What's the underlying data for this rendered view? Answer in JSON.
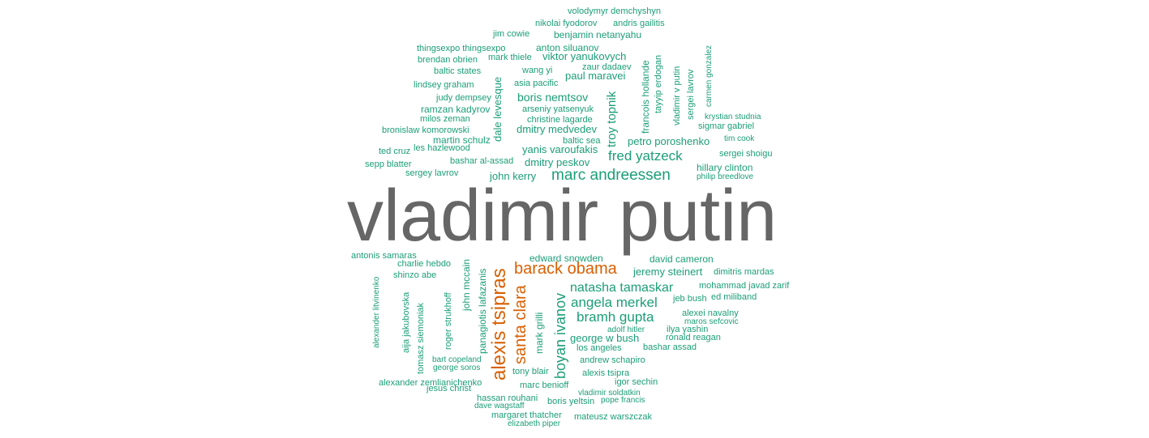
{
  "colors": {
    "largest": "#666666",
    "second": "#d95f02",
    "rest": "#1b9e77"
  },
  "words": [
    {
      "text": "vladimir putin",
      "tier": "largest"
    },
    {
      "text": "alexis tsipras",
      "tier": "second"
    },
    {
      "text": "barack obama",
      "tier": "second"
    },
    {
      "text": "santa clara",
      "tier": "second"
    },
    {
      "text": "marc andreessen",
      "tier": "rest"
    },
    {
      "text": "natasha tamaskar",
      "tier": "rest"
    },
    {
      "text": "angela merkel",
      "tier": "rest"
    },
    {
      "text": "bramh gupta",
      "tier": "rest"
    },
    {
      "text": "boyan ivanov",
      "tier": "rest"
    },
    {
      "text": "fred yatzeck",
      "tier": "rest"
    },
    {
      "text": "troy topnik",
      "tier": "rest"
    },
    {
      "text": "boris nemtsov",
      "tier": "rest"
    },
    {
      "text": "petro poroshenko",
      "tier": "rest"
    },
    {
      "text": "dmitry medvedev",
      "tier": "rest"
    },
    {
      "text": "dmitry peskov",
      "tier": "rest"
    },
    {
      "text": "yanis varoufakis",
      "tier": "rest"
    },
    {
      "text": "john kerry",
      "tier": "rest"
    },
    {
      "text": "hillary clinton",
      "tier": "rest"
    },
    {
      "text": "jeremy steinert",
      "tier": "rest"
    },
    {
      "text": "david cameron",
      "tier": "rest"
    },
    {
      "text": "george w bush",
      "tier": "rest"
    },
    {
      "text": "viktor yanukovych",
      "tier": "rest"
    },
    {
      "text": "benjamin netanyahu",
      "tier": "rest"
    },
    {
      "text": "paul maravei",
      "tier": "rest"
    },
    {
      "text": "francois hollande",
      "tier": "rest"
    },
    {
      "text": "dale levesque",
      "tier": "rest"
    },
    {
      "text": "mark grilli",
      "tier": "rest"
    },
    {
      "text": "edward snowden",
      "tier": "rest"
    },
    {
      "text": "volodymyr demchyshyn",
      "tier": "rest"
    },
    {
      "text": "nikolai fyodorov",
      "tier": "rest"
    },
    {
      "text": "andris gailitis",
      "tier": "rest"
    },
    {
      "text": "jim cowie",
      "tier": "rest"
    },
    {
      "text": "thingsexpo thingsexpo",
      "tier": "rest"
    },
    {
      "text": "anton siluanov",
      "tier": "rest"
    },
    {
      "text": "brendan obrien",
      "tier": "rest"
    },
    {
      "text": "mark thiele",
      "tier": "rest"
    },
    {
      "text": "zaur dadaev",
      "tier": "rest"
    },
    {
      "text": "baltic states",
      "tier": "rest"
    },
    {
      "text": "wang yi",
      "tier": "rest"
    },
    {
      "text": "lindsey graham",
      "tier": "rest"
    },
    {
      "text": "asia pacific",
      "tier": "rest"
    },
    {
      "text": "judy dempsey",
      "tier": "rest"
    },
    {
      "text": "ramzan kadyrov",
      "tier": "rest"
    },
    {
      "text": "arseniy yatsenyuk",
      "tier": "rest"
    },
    {
      "text": "milos zeman",
      "tier": "rest"
    },
    {
      "text": "christine lagarde",
      "tier": "rest"
    },
    {
      "text": "bronislaw komorowski",
      "tier": "rest"
    },
    {
      "text": "martin schulz",
      "tier": "rest"
    },
    {
      "text": "baltic sea",
      "tier": "rest"
    },
    {
      "text": "ted cruz",
      "tier": "rest"
    },
    {
      "text": "les hazlewood",
      "tier": "rest"
    },
    {
      "text": "sepp blatter",
      "tier": "rest"
    },
    {
      "text": "bashar al-assad",
      "tier": "rest"
    },
    {
      "text": "sergey lavrov",
      "tier": "rest"
    },
    {
      "text": "tayyip erdogan",
      "tier": "rest"
    },
    {
      "text": "vladimir v putin",
      "tier": "rest"
    },
    {
      "text": "sergei lavrov",
      "tier": "rest"
    },
    {
      "text": "carmen gonzalez",
      "tier": "rest"
    },
    {
      "text": "krystian studnia",
      "tier": "rest"
    },
    {
      "text": "sigmar gabriel",
      "tier": "rest"
    },
    {
      "text": "tim cook",
      "tier": "rest"
    },
    {
      "text": "sergei shoigu",
      "tier": "rest"
    },
    {
      "text": "philip breedlove",
      "tier": "rest"
    },
    {
      "text": "antonis samaras",
      "tier": "rest"
    },
    {
      "text": "charlie hebdo",
      "tier": "rest"
    },
    {
      "text": "shinzo abe",
      "tier": "rest"
    },
    {
      "text": "alexander litvinenko",
      "tier": "rest"
    },
    {
      "text": "aija jakubovska",
      "tier": "rest"
    },
    {
      "text": "tomasz siemoniak",
      "tier": "rest"
    },
    {
      "text": "roger strukhoff",
      "tier": "rest"
    },
    {
      "text": "john mccain",
      "tier": "rest"
    },
    {
      "text": "panagiotis lafazanis",
      "tier": "rest"
    },
    {
      "text": "bart copeland",
      "tier": "rest"
    },
    {
      "text": "george soros",
      "tier": "rest"
    },
    {
      "text": "alexander zemlianichenko",
      "tier": "rest"
    },
    {
      "text": "jesus christ",
      "tier": "rest"
    },
    {
      "text": "tony blair",
      "tier": "rest"
    },
    {
      "text": "marc benioff",
      "tier": "rest"
    },
    {
      "text": "hassan rouhani",
      "tier": "rest"
    },
    {
      "text": "dave wagstaff",
      "tier": "rest"
    },
    {
      "text": "margaret thatcher",
      "tier": "rest"
    },
    {
      "text": "elizabeth piper",
      "tier": "rest"
    },
    {
      "text": "boris yeltsin",
      "tier": "rest"
    },
    {
      "text": "pope francis",
      "tier": "rest"
    },
    {
      "text": "vladimir soldatkin",
      "tier": "rest"
    },
    {
      "text": "mateusz warszczak",
      "tier": "rest"
    },
    {
      "text": "alexis tsipra",
      "tier": "rest"
    },
    {
      "text": "igor sechin",
      "tier": "rest"
    },
    {
      "text": "andrew schapiro",
      "tier": "rest"
    },
    {
      "text": "los angeles",
      "tier": "rest"
    },
    {
      "text": "bashar assad",
      "tier": "rest"
    },
    {
      "text": "adolf hitler",
      "tier": "rest"
    },
    {
      "text": "ilya yashin",
      "tier": "rest"
    },
    {
      "text": "ronald reagan",
      "tier": "rest"
    },
    {
      "text": "maros sefcovic",
      "tier": "rest"
    },
    {
      "text": "alexei navalny",
      "tier": "rest"
    },
    {
      "text": "jeb bush",
      "tier": "rest"
    },
    {
      "text": "ed miliband",
      "tier": "rest"
    },
    {
      "text": "mohammad javad zarif",
      "tier": "rest"
    },
    {
      "text": "dimitris mardas",
      "tier": "rest"
    }
  ]
}
